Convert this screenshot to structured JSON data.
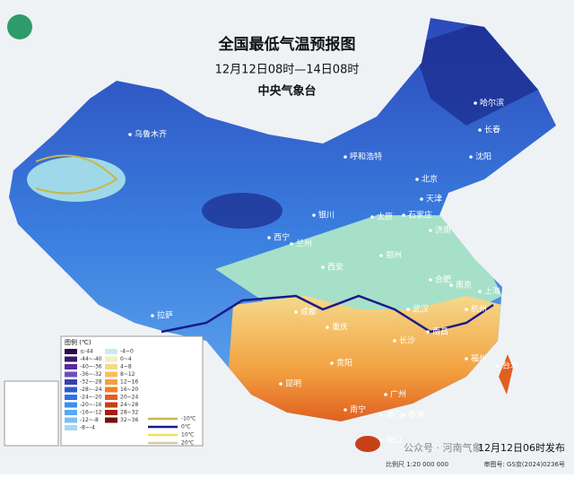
{
  "header": {
    "title": "全国最低气温预报图",
    "subtitle": "12月12日08时—14日08时",
    "issuer": "中央气象台"
  },
  "cities": [
    "乌鲁木齐",
    "哈尔滨",
    "长春",
    "沈阳",
    "呼和浩特",
    "北京",
    "天津",
    "银川",
    "太原",
    "石家庄",
    "西宁",
    "兰州",
    "济南",
    "西安",
    "郑州",
    "拉萨",
    "成都",
    "合肥",
    "南京",
    "上海",
    "武汉",
    "杭州",
    "重庆",
    "长沙",
    "南昌",
    "贵阳",
    "福州",
    "台北",
    "昆明",
    "南宁",
    "广州",
    "澳门",
    "香港",
    "海口"
  ],
  "legend": {
    "title": "图例 (℃)",
    "entries": [
      {
        "label": "≤-44",
        "color": "#2a0a4a"
      },
      {
        "label": "-44~-40",
        "color": "#3b1a6e"
      },
      {
        "label": "-40~-36",
        "color": "#5a2a9a"
      },
      {
        "label": "-36~-32",
        "color": "#6a4fc0"
      },
      {
        "label": "-32~-28",
        "color": "#3b3fb0"
      },
      {
        "label": "-28~-24",
        "color": "#2d5bd0"
      },
      {
        "label": "-24~-20",
        "color": "#2f73e0"
      },
      {
        "label": "-20~-16",
        "color": "#3b8ff0"
      },
      {
        "label": "-16~-12",
        "color": "#5aa8f5"
      },
      {
        "label": "-12~-8",
        "color": "#7cc0f7"
      },
      {
        "label": "-8~-4",
        "color": "#a6d8f5"
      },
      {
        "label": "-4~0",
        "color": "#c9ecf0"
      },
      {
        "label": "0~4",
        "color": "#f3f0c0"
      },
      {
        "label": "4~8",
        "color": "#f5d98a"
      },
      {
        "label": "8~12",
        "color": "#f5c060"
      },
      {
        "label": "12~16",
        "color": "#f2a040"
      },
      {
        "label": "16~20",
        "color": "#ee8030"
      },
      {
        "label": "20~24",
        "color": "#e06020"
      },
      {
        "label": "24~28",
        "color": "#c84018"
      },
      {
        "label": "28~32",
        "color": "#a02010"
      },
      {
        "label": "32~36",
        "color": "#7a1008"
      }
    ],
    "lines": [
      {
        "label": "-10℃",
        "color": "#c8b84a"
      },
      {
        "label": "0℃",
        "color": "#1a1a8a"
      },
      {
        "label": "10℃",
        "color": "#f0e060"
      },
      {
        "label": "20℃",
        "color": "#d9c9a0"
      }
    ]
  },
  "footer": {
    "issued": "12月12日06时发布",
    "scale": "比例尺 1:20 000 000",
    "approval": "审图号: GS京(2024)0236号",
    "watermark": "公众号 · 河南气象"
  }
}
